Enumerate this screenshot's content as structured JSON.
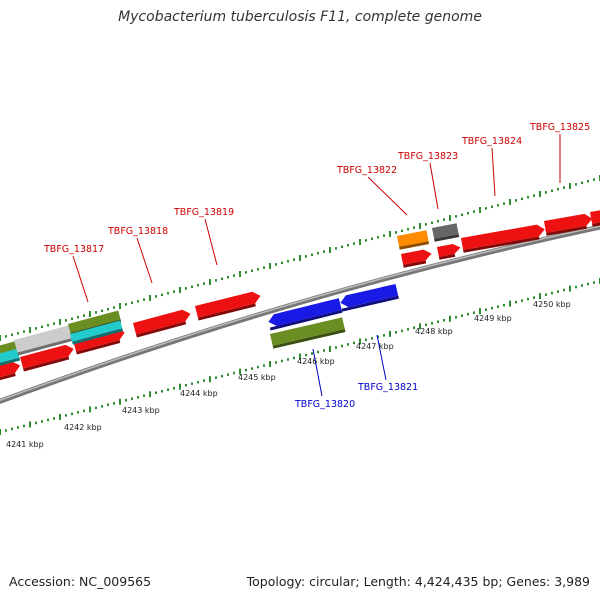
{
  "title": "Mycobacterium tuberculosis F11, complete genome",
  "accession": "Accession: NC_009565",
  "topology": "Topology: circular; Length: 4,424,435 bp; Genes: 3,989",
  "colors": {
    "forward_label": "#cc0000",
    "reverse_label": "#0000cc",
    "scale_ticks": "#2e8b2e",
    "backbone": "#888888"
  },
  "scale_labels": [
    "4241 kbp",
    "4242 kbp",
    "4243 kbp",
    "4244 kbp",
    "4245 kbp",
    "4246 kbp",
    "4247 kbp",
    "4248 kbp",
    "4249 kbp",
    "4250 kbp"
  ],
  "gene_labels": {
    "forward": [
      "TBFG_13817",
      "TBFG_13818",
      "TBFG_13819",
      "TBFG_13822",
      "TBFG_13823",
      "TBFG_13824",
      "TBFG_13825"
    ],
    "reverse": [
      "TBFG_13820",
      "TBFG_13821"
    ]
  },
  "feature_colors": {
    "red": "#ee1111",
    "blue": "#1a1ae6",
    "olive": "#6b8e23",
    "orange": "#ff8c00",
    "gray": "#666666",
    "silver": "#cccccc",
    "cyan": "#22cccc"
  }
}
